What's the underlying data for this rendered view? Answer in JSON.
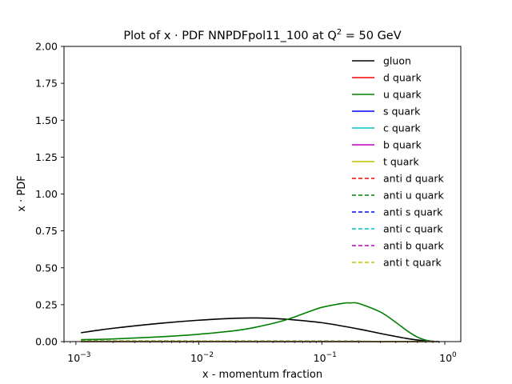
{
  "chart_data": {
    "type": "line",
    "title_main": "Plot of x · PDF NNPDFpol11_100 at Q",
    "title_sup": "2",
    "title_tail": " = 50 GeV",
    "xlabel": "x - momentum fraction",
    "ylabel": "x · PDF",
    "xscale": "log",
    "xlim": [
      0.0008,
      1.35
    ],
    "ylim": [
      0,
      2.0
    ],
    "yticks": [
      "0.00",
      "0.25",
      "0.50",
      "0.75",
      "1.00",
      "1.25",
      "1.50",
      "1.75",
      "2.00"
    ],
    "xticks": [
      {
        "base": "10",
        "exp": "−3",
        "value": 0.001
      },
      {
        "base": "10",
        "exp": "−2",
        "value": 0.01
      },
      {
        "base": "10",
        "exp": "−1",
        "value": 0.1
      },
      {
        "base": "10",
        "exp": "0",
        "value": 1
      }
    ],
    "grid": false,
    "legend_position": "top-right",
    "series": [
      {
        "name": "gluon",
        "color": "#000000",
        "dash": "solid",
        "x": [
          0.0011,
          0.002,
          0.005,
          0.01,
          0.02,
          0.03,
          0.05,
          0.1,
          0.2,
          0.3,
          0.5,
          0.7,
          0.9
        ],
        "y": [
          0.06,
          0.09,
          0.125,
          0.145,
          0.158,
          0.16,
          0.152,
          0.128,
          0.085,
          0.055,
          0.02,
          0.005,
          0.0
        ]
      },
      {
        "name": "d quark",
        "color": "#ff0000",
        "dash": "solid",
        "x": [
          0.0011,
          0.01,
          0.1,
          0.3,
          0.6,
          0.9
        ],
        "y": [
          0.0,
          0.0,
          0.0,
          0.0,
          0.0,
          0.0
        ]
      },
      {
        "name": "u quark",
        "color": "#008000",
        "dash": "solid",
        "x": [
          0.0011,
          0.002,
          0.005,
          0.01,
          0.02,
          0.03,
          0.05,
          0.08,
          0.1,
          0.15,
          0.17,
          0.2,
          0.3,
          0.4,
          0.5,
          0.6,
          0.7,
          0.8,
          0.9
        ],
        "y": [
          0.013,
          0.018,
          0.033,
          0.05,
          0.075,
          0.1,
          0.145,
          0.205,
          0.232,
          0.26,
          0.262,
          0.258,
          0.2,
          0.13,
          0.07,
          0.03,
          0.01,
          0.002,
          0.0
        ]
      },
      {
        "name": "s quark",
        "color": "#0000ff",
        "dash": "solid",
        "x": [
          0.0011,
          0.01,
          0.1,
          0.3,
          0.6,
          0.9
        ],
        "y": [
          0.0,
          0.0,
          0.0,
          0.0,
          0.0,
          0.0
        ]
      },
      {
        "name": "c quark",
        "color": "#00bfbf",
        "dash": "solid",
        "x": [
          0.0011,
          0.01,
          0.1,
          0.3,
          0.6,
          0.9
        ],
        "y": [
          0.0,
          0.0,
          0.0,
          0.0,
          0.0,
          0.0
        ]
      },
      {
        "name": "b quark",
        "color": "#bf00bf",
        "dash": "solid",
        "x": [
          0.0011,
          0.01,
          0.1,
          0.3,
          0.6,
          0.9
        ],
        "y": [
          0.0,
          0.0,
          0.0,
          0.0,
          0.0,
          0.0
        ]
      },
      {
        "name": "t quark",
        "color": "#bfbf00",
        "dash": "solid",
        "x": [
          0.0011,
          0.01,
          0.1,
          0.3,
          0.6,
          0.9
        ],
        "y": [
          0.0,
          0.0,
          0.0,
          0.0,
          0.0,
          0.0
        ]
      },
      {
        "name": "anti d quark",
        "color": "#ff0000",
        "dash": "dashed",
        "x": [
          0.0011,
          0.01,
          0.1,
          0.3,
          0.6,
          0.9
        ],
        "y": [
          0.004,
          0.003,
          0.002,
          0.001,
          0.0,
          0.0
        ]
      },
      {
        "name": "anti u quark",
        "color": "#008000",
        "dash": "dashed",
        "x": [
          0.0011,
          0.01,
          0.1,
          0.3,
          0.6,
          0.9
        ],
        "y": [
          0.005,
          0.004,
          0.003,
          0.001,
          0.0,
          0.0
        ]
      },
      {
        "name": "anti s quark",
        "color": "#0000ff",
        "dash": "dashed",
        "x": [
          0.0011,
          0.01,
          0.1,
          0.3,
          0.6,
          0.9
        ],
        "y": [
          0.003,
          0.003,
          0.002,
          0.001,
          0.0,
          0.0
        ]
      },
      {
        "name": "anti c quark",
        "color": "#00bfbf",
        "dash": "dashed",
        "x": [
          0.0011,
          0.01,
          0.1,
          0.3,
          0.6,
          0.9
        ],
        "y": [
          0.0,
          0.0,
          0.0,
          0.0,
          0.0,
          0.0
        ]
      },
      {
        "name": "anti b quark",
        "color": "#bf00bf",
        "dash": "dashed",
        "x": [
          0.0011,
          0.01,
          0.1,
          0.3,
          0.6,
          0.9
        ],
        "y": [
          0.0,
          0.0,
          0.0,
          0.0,
          0.0,
          0.0
        ]
      },
      {
        "name": "anti t quark",
        "color": "#bfbf00",
        "dash": "dashed",
        "x": [
          0.0011,
          0.01,
          0.1,
          0.3,
          0.6,
          0.9
        ],
        "y": [
          0.003,
          0.003,
          0.002,
          0.001,
          0.0,
          0.0
        ]
      }
    ]
  }
}
